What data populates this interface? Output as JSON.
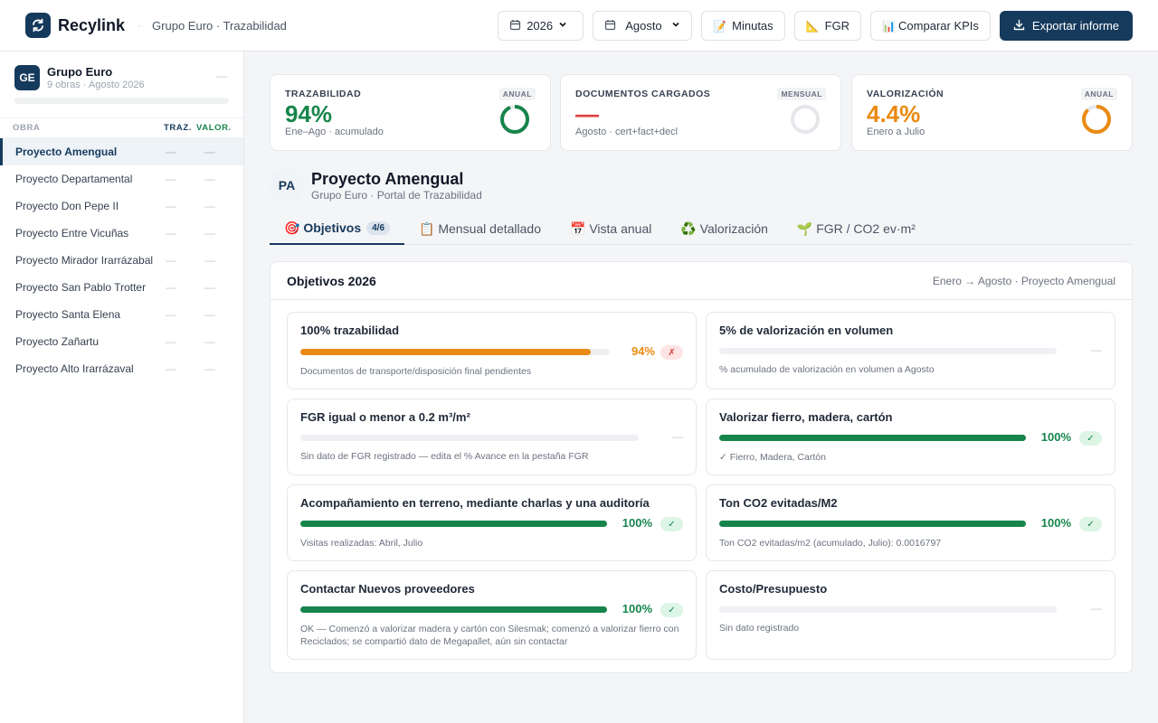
{
  "header": {
    "brand": "Recylink",
    "sep": "·",
    "subtitle": "Grupo Euro · Trazabilidad",
    "year": "2026",
    "month": "Agosto",
    "minutas": "Minutas",
    "fgr": "FGR",
    "compare": "Comparar KPIs",
    "export": "Exportar informe"
  },
  "sidebar": {
    "org_initials": "GE",
    "org_name": "Grupo Euro",
    "org_meta": "9 obras · Agosto 2026",
    "org_dash": "—",
    "col_obra": "OBRA",
    "col_traz": "TRAZ.",
    "col_valor": "VALOR.",
    "obras": [
      {
        "name": "Proyecto Amengual",
        "traz": "—",
        "valor": "—"
      },
      {
        "name": "Proyecto Departamental",
        "traz": "—",
        "valor": "—"
      },
      {
        "name": "Proyecto Don Pepe II",
        "traz": "—",
        "valor": "—"
      },
      {
        "name": "Proyecto Entre Vicuñas",
        "traz": "—",
        "valor": "—"
      },
      {
        "name": "Proyecto Mirador Irarrázabal",
        "traz": "—",
        "valor": "—"
      },
      {
        "name": "Proyecto San Pablo Trotter",
        "traz": "—",
        "valor": "—"
      },
      {
        "name": "Proyecto Santa Elena",
        "traz": "—",
        "valor": "—"
      },
      {
        "name": "Proyecto Zañartu",
        "traz": "—",
        "valor": "—"
      },
      {
        "name": "Proyecto Alto Irarrázaval",
        "traz": "—",
        "valor": "—"
      }
    ]
  },
  "kpis": [
    {
      "label": "TRAZABILIDAD",
      "tag": "ANUAL",
      "value": "94%",
      "sub": "Ene–Ago · acumulado",
      "color": "#16854b",
      "ring": 0.94
    },
    {
      "label": "DOCUMENTOS CARGADOS",
      "tag": "MENSUAL",
      "value": "—",
      "sub": "Agosto · cert+fact+decl",
      "color": "#e23d3d",
      "ring": 0
    },
    {
      "label": "VALORIZACIÓN",
      "tag": "ANUAL",
      "value": "4.4%",
      "sub": "Enero a Julio",
      "color": "#ea8a12",
      "ring": 0.88
    }
  ],
  "project": {
    "initials": "PA",
    "title": "Proyecto Amengual",
    "subtitle": "Grupo Euro · Portal de Trazabilidad"
  },
  "tabs": [
    {
      "label": "🎯 Objetivos",
      "count": "4/6"
    },
    {
      "label": "📋 Mensual detallado"
    },
    {
      "label": "📅 Vista anual"
    },
    {
      "label": "♻️ Valorización"
    },
    {
      "label": "🌱 FGR / CO2 ev·m²"
    }
  ],
  "panel": {
    "title": "Objetivos 2026",
    "range": "Enero → Agosto · Proyecto Amengual"
  },
  "goals": [
    {
      "title": "100% trazabilidad",
      "progress": 0.94,
      "pct": "94%",
      "status": "✗",
      "note": "Documentos de transporte/disposición final pendientes",
      "color": "#ea8a12"
    },
    {
      "title": "5% de valorización en volumen",
      "progress": 0,
      "pct": "",
      "status": "—",
      "note": "% acumulado de valorización en volumen a Agosto",
      "color": "#16854b"
    },
    {
      "title": "FGR igual o menor a 0.2 m³/m²",
      "progress": 0,
      "pct": "",
      "status": "—",
      "note": "Sin dato de FGR registrado — edita el % Avance en la pestaña FGR",
      "color": "#16854b"
    },
    {
      "title": "Valorizar fierro, madera, cartón",
      "progress": 1,
      "pct": "100%",
      "status": "✓",
      "note": "✓ Fierro, Madera, Cartón",
      "color": "#16854b"
    },
    {
      "title": "Acompañamiento en terreno, mediante charlas y una auditoría",
      "progress": 1,
      "pct": "100%",
      "status": "✓",
      "note": "Visitas realizadas: Abril, Julio",
      "color": "#16854b"
    },
    {
      "title": "Ton CO2 evitadas/M2",
      "progress": 1,
      "pct": "100%",
      "status": "✓",
      "note": "Ton CO2 evitadas/m2 (acumulado, Julio): 0.0016797",
      "color": "#16854b"
    },
    {
      "title": "Contactar Nuevos proveedores",
      "progress": 1,
      "pct": "100%",
      "status": "✓",
      "note": "OK — Comenzó a valorizar madera y cartón con Silesmak; comenzó a valorizar fierro con Reciclados; se compartió dato de Megapallet, aún sin contactar",
      "color": "#16854b"
    },
    {
      "title": "Costo/Presupuesto",
      "progress": 0,
      "pct": "",
      "status": "—",
      "note": "Sin dato registrado",
      "color": "#16854b"
    }
  ]
}
